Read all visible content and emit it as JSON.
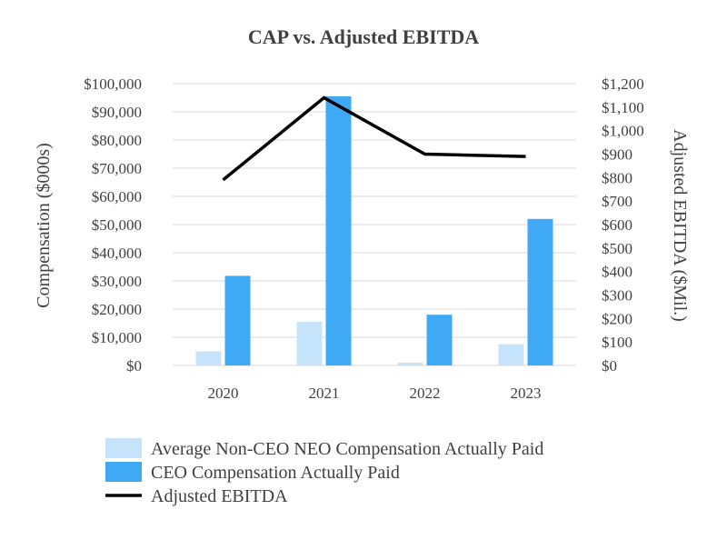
{
  "chart_data": {
    "type": "bar",
    "title": "CAP vs. Adjusted EBITDA",
    "categories": [
      "2020",
      "2021",
      "2022",
      "2023"
    ],
    "ylabel": "Compensation ($000s)",
    "y2label": "Adjusted EBITDA ($Mil.)",
    "ylim": [
      0,
      100000
    ],
    "y2lim": [
      0,
      1200
    ],
    "yticks": [
      0,
      10000,
      20000,
      30000,
      40000,
      50000,
      60000,
      70000,
      80000,
      90000,
      100000
    ],
    "ytick_labels": [
      "$0",
      "$10,000",
      "$20,000",
      "$30,000",
      "$40,000",
      "$50,000",
      "$60,000",
      "$70,000",
      "$80,000",
      "$90,000",
      "$100,000"
    ],
    "y2ticks": [
      0,
      100,
      200,
      300,
      400,
      500,
      600,
      700,
      800,
      900,
      1000,
      1100,
      1200
    ],
    "y2tick_labels": [
      "$0",
      "$100",
      "$200",
      "$300",
      "$400",
      "$500",
      "$600",
      "$700",
      "$800",
      "$900",
      "$1,000",
      "$1,100",
      "$1,200"
    ],
    "grid": true,
    "legend_position": "bottom",
    "series": [
      {
        "name": "Average Non-CEO NEO Compensation Actually Paid",
        "type": "bar",
        "axis": "left",
        "color": "#C5E3FB",
        "values": [
          5000,
          15500,
          1000,
          7500
        ]
      },
      {
        "name": "CEO Compensation Actually Paid",
        "type": "bar",
        "axis": "left",
        "color": "#3FA9F5",
        "values": [
          31800,
          95500,
          18000,
          52000
        ]
      },
      {
        "name": "Adjusted EBITDA",
        "type": "line",
        "axis": "right",
        "color": "#000000",
        "values": [
          790,
          1140,
          900,
          890
        ]
      }
    ]
  }
}
